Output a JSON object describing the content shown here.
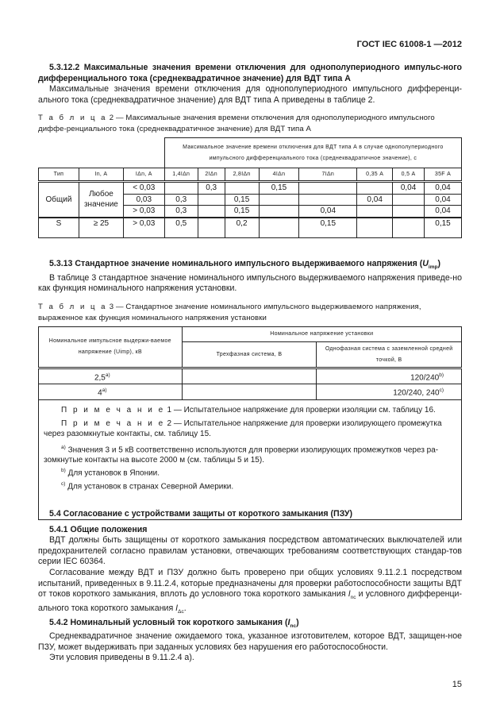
{
  "header": "ГОСТ IEC 61008-1 —2012",
  "s53122": {
    "title": "5.3.12.2 Максимальные значения времени отключения для однополупериодного импульс-ного дифференциального тока (среднеквадратичное значение) для ВДТ типа А",
    "text": "Максимальные значения времени отключения для однополупериодного импульсного дифференци-ального тока (среднеквадратичное значение) для ВДТ типа А приведены в таблице 2."
  },
  "table2": {
    "caption_label": "Т а б л и ц а",
    "caption": "2 — Максимальные значения времени отключения для однополупериодного импульсного диффе-ренциального тока (среднеквадратичное значение) для ВДТ типа А",
    "group_header": "Максимальное значение времени отключения для ВДТ типа А в случае однополупериодного импульсного дифференциального тока (среднеквадратичное значение), с",
    "columns": [
      "Тип",
      "In, А",
      "IΔn, А",
      "1,4IΔn",
      "2IΔn",
      "2,8IΔn",
      "4IΔn",
      "7IΔn",
      "0,35 А",
      "0,5 А",
      "35F А"
    ],
    "rows": [
      [
        "Общий",
        "Любое значение",
        "< 0,03",
        "",
        "0,3",
        "",
        "0,15",
        "",
        "",
        "0,04",
        "0,04"
      ],
      [
        "",
        "",
        "0,03",
        "0,3",
        "",
        "0,15",
        "",
        "",
        "0,04",
        "",
        "0,04"
      ],
      [
        "",
        "",
        "> 0,03",
        "0,3",
        "",
        "0,15",
        "",
        "0,04",
        "",
        "",
        "0,04"
      ],
      [
        "S",
        "≥ 25",
        "> 0,03",
        "0,5",
        "",
        "0,2",
        "",
        "0,15",
        "",
        "",
        "0,15"
      ]
    ]
  },
  "s5313": {
    "title": "5.3.13 Стандартное значение номинального импульсного выдерживаемого напряжения (Uimp)",
    "text": "В таблице 3 стандартное значение номинального импульсного выдерживаемого напряжения приведе-но как функция номинального напряжения установки."
  },
  "table3": {
    "caption_label": "Т а б л и ц а",
    "caption": "3 — Стандартное значение номинального импульсного выдерживаемого напряжения, выраженное как функция номинального напряжения установки",
    "col1": "Номинальное импульсное выдержи-ваемое напряжение (Uimp), кВ",
    "group": "Номинальное напряжение установки",
    "col2": "Трехфазная система, В",
    "col3": "Однофазная система с заземленной средней точкой, В",
    "rows": [
      [
        "2,5",
        "a)",
        "",
        "120/240",
        "b)"
      ],
      [
        "4",
        "a)",
        "",
        "120/240, 240",
        "c)"
      ]
    ],
    "note_label": "П р и м е ч а н и е",
    "note1": "1 — Испытательное напряжение для проверки изоляции см. таблицу 16.",
    "note2": "2 — Испытательное напряжение для проверки изолирующего промежутка через разомкнутые контакты, см. таблицу 15.",
    "fa": "Значения 3 и 5 кВ соответственно используются для проверки изолирующих промежутков через ра-зомкнутые контакты на высоте 2000 м (см. таблицы 5 и 15).",
    "fb": "Для установок в Японии.",
    "fc": "Для установок в странах Северной Америки."
  },
  "s54": {
    "title": "5.4 Согласование с устройствами защиты от короткого замыкания (ПЗУ)"
  },
  "s541": {
    "title": "5.4.1 Общие положения",
    "p1": "ВДТ должны быть защищены от короткого замыкания посредством автоматических выключателей или предохранителей согласно правилам установки, отвечающих требованиям соответствующих стандар-тов серии IEC 60364.",
    "p2": "Согласование между ВДТ и ПЗУ должно быть проверено при общих условиях 9.11.2.1 посредством испытаний, приведенных в 9.11.2.4, которые предназначены для проверки работоспособности защиты ВДТ от токов короткого замыкания, вплоть до условного тока короткого замыкания Inc и условного дифференци-ального тока короткого замыкания IΔc."
  },
  "s542": {
    "title": "5.4.2 Номинальный условный ток короткого замыкания (Inc)",
    "p1": "Среднеквадратичное значение ожидаемого тока, указанное изготовителем, которое ВДТ, защищен-ное ПЗУ, может выдерживать при заданных условиях без нарушения его работоспособности.",
    "p2": "Эти условия приведены в 9.11.2.4 а)."
  },
  "page_number": "15"
}
